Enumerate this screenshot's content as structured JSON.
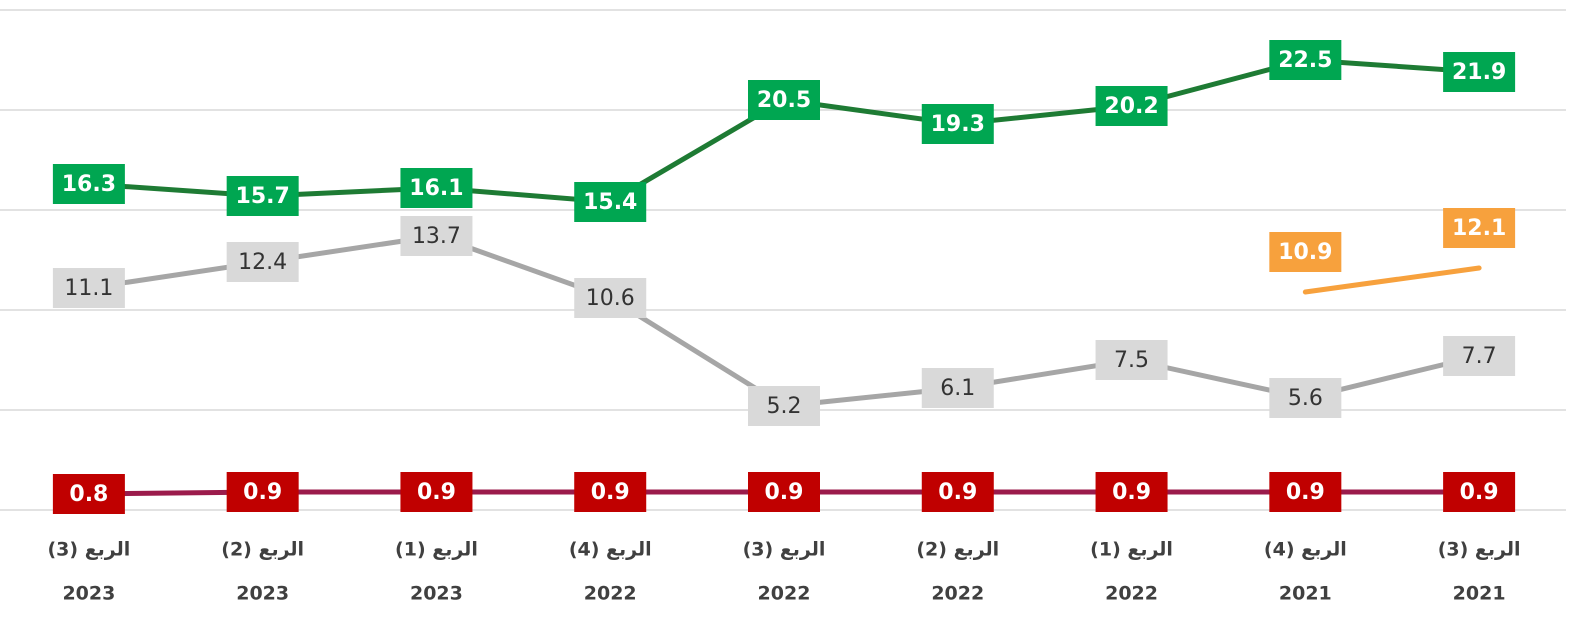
{
  "chart_data": {
    "type": "line",
    "categories": [
      [
        "الربع (3)",
        "2023"
      ],
      [
        "الربع (2)",
        "2023"
      ],
      [
        "الربع (1)",
        "2023"
      ],
      [
        "الربع (4)",
        "2022"
      ],
      [
        "الربع (3)",
        "2022"
      ],
      [
        "الربع (2)",
        "2022"
      ],
      [
        "الربع (1)",
        "2022"
      ],
      [
        "الربع (4)",
        "2021"
      ],
      [
        "الربع (3)",
        "2021"
      ]
    ],
    "series": [
      {
        "color": "#1e7b34",
        "label_color": "#00a651",
        "label_text_color": "#ffffff",
        "bold": true,
        "values": [
          16.3,
          15.7,
          16.1,
          15.4,
          20.5,
          19.3,
          20.2,
          22.5,
          21.9
        ]
      },
      {
        "color": "#a6a6a6",
        "label_color": "#d9d9d9",
        "label_text_color": "#333333",
        "bold": false,
        "values": [
          11.1,
          12.4,
          13.7,
          10.6,
          5.2,
          6.1,
          7.5,
          5.6,
          7.7
        ]
      },
      {
        "color": "#9b1b4b",
        "label_color": "#c00000",
        "label_text_color": "#ffffff",
        "bold": true,
        "values": [
          0.8,
          0.9,
          0.9,
          0.9,
          0.9,
          0.9,
          0.9,
          0.9,
          0.9
        ]
      },
      {
        "color": "#f7a13d",
        "label_color": "#f7a13d",
        "label_text_color": "#ffffff",
        "bold": true,
        "values": [
          null,
          null,
          null,
          null,
          null,
          null,
          null,
          10.9,
          12.1
        ]
      }
    ],
    "ylim": [
      0,
      25
    ],
    "yticks": [
      0,
      5,
      10,
      15,
      20,
      25
    ],
    "grid": true
  }
}
